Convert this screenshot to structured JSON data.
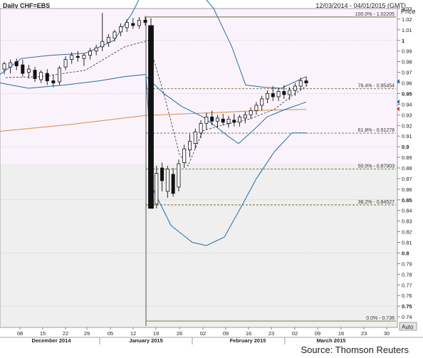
{
  "header": {
    "title": "Daily CHF=EBS",
    "date_range": "12/03/2014 - 04/01/2015 (GMT)"
  },
  "source": "Source: Thomson Reuters",
  "colors": {
    "candle": "#111111",
    "bollinger": "#1f6fa8",
    "moving_average": "#d98a4a",
    "fib_line": "#6b6b3a",
    "shade_upper": "#fbf3fb",
    "shade_lower": "#efefef",
    "price_marker_blue": "#1f6fa8",
    "price_marker_red": "#d04040"
  },
  "chart_data": {
    "type": "candlestick",
    "title": "Daily CHF=EBS",
    "ylabel": "Price",
    "ylim": [
      0.73,
      1.03
    ],
    "y_ticks": [
      "1.03",
      "1.02",
      "1.01",
      "1",
      "0.99",
      "0.98",
      "0.97",
      "0.96",
      "0.95",
      "0.94",
      "0.93",
      "0.92",
      "0.91",
      "0.9",
      "0.89",
      "0.88",
      "0.87",
      "0.86",
      "0.85",
      "0.84",
      "0.83",
      "0.82",
      "0.81",
      "0.8",
      "0.79",
      "0.78",
      "0.77",
      "0.76",
      "0.75",
      "0.74"
    ],
    "y_bold_ticks": [
      "1",
      "0.95",
      "0.9",
      "0.85",
      "0.8",
      "0.75"
    ],
    "y_axis_button": "Auto",
    "x_ticks": [
      "08",
      "15",
      "22",
      "29",
      "05",
      "12",
      "19",
      "26",
      "02",
      "09",
      "16",
      "23",
      "02",
      "09",
      "16",
      "23",
      "30"
    ],
    "months": [
      "December 2014",
      "January 2015",
      "February 2015",
      "March 2015"
    ],
    "fib_levels": [
      {
        "label": "100.0% - 1.02205",
        "value": 1.02205
      },
      {
        "label": "76.4% - 0.95454",
        "value": 0.95454
      },
      {
        "label": "61.8% - 0.91278",
        "value": 0.91278
      },
      {
        "label": "50.0% - 0.87903",
        "value": 0.87903
      },
      {
        "label": "38.2% - 0.84527",
        "value": 0.84527
      },
      {
        "label": "0.0% - 0.736",
        "value": 0.736
      }
    ],
    "candles": [
      {
        "o": 0.973,
        "h": 0.98,
        "l": 0.968,
        "c": 0.978
      },
      {
        "o": 0.975,
        "h": 0.982,
        "l": 0.969,
        "c": 0.979
      },
      {
        "o": 0.98,
        "h": 0.983,
        "l": 0.972,
        "c": 0.976
      },
      {
        "o": 0.977,
        "h": 0.982,
        "l": 0.966,
        "c": 0.969
      },
      {
        "o": 0.97,
        "h": 0.977,
        "l": 0.964,
        "c": 0.973
      },
      {
        "o": 0.972,
        "h": 0.975,
        "l": 0.961,
        "c": 0.964
      },
      {
        "o": 0.963,
        "h": 0.972,
        "l": 0.96,
        "c": 0.97
      },
      {
        "o": 0.969,
        "h": 0.973,
        "l": 0.958,
        "c": 0.962
      },
      {
        "o": 0.962,
        "h": 0.968,
        "l": 0.956,
        "c": 0.96
      },
      {
        "o": 0.961,
        "h": 0.976,
        "l": 0.958,
        "c": 0.974
      },
      {
        "o": 0.975,
        "h": 0.985,
        "l": 0.972,
        "c": 0.982
      },
      {
        "o": 0.982,
        "h": 0.989,
        "l": 0.978,
        "c": 0.986
      },
      {
        "o": 0.985,
        "h": 0.99,
        "l": 0.98,
        "c": 0.984
      },
      {
        "o": 0.983,
        "h": 0.988,
        "l": 0.976,
        "c": 0.986
      },
      {
        "o": 0.986,
        "h": 0.993,
        "l": 0.982,
        "c": 0.99
      },
      {
        "o": 0.99,
        "h": 0.996,
        "l": 0.986,
        "c": 0.993
      },
      {
        "o": 0.994,
        "h": 1.026,
        "l": 0.99,
        "c": 0.999
      },
      {
        "o": 0.998,
        "h": 1.006,
        "l": 0.994,
        "c": 1.003
      },
      {
        "o": 1.002,
        "h": 1.01,
        "l": 0.999,
        "c": 1.008
      },
      {
        "o": 1.008,
        "h": 1.016,
        "l": 1.004,
        "c": 1.013
      },
      {
        "o": 1.012,
        "h": 1.02,
        "l": 1.008,
        "c": 1.017
      },
      {
        "o": 1.016,
        "h": 1.021,
        "l": 1.011,
        "c": 1.014
      },
      {
        "o": 1.014,
        "h": 1.022,
        "l": 1.011,
        "c": 1.019
      },
      {
        "o": 1.019,
        "h": 1.023,
        "l": 1.014,
        "c": 1.017
      },
      {
        "o": 1.014,
        "h": 1.021,
        "l": 0.842,
        "c": 0.842
      },
      {
        "o": 0.846,
        "h": 0.882,
        "l": 0.842,
        "c": 0.875
      },
      {
        "o": 0.88,
        "h": 0.885,
        "l": 0.858,
        "c": 0.868
      },
      {
        "o": 0.858,
        "h": 0.882,
        "l": 0.852,
        "c": 0.879
      },
      {
        "o": 0.874,
        "h": 0.88,
        "l": 0.853,
        "c": 0.856
      },
      {
        "o": 0.862,
        "h": 0.888,
        "l": 0.858,
        "c": 0.884
      },
      {
        "o": 0.885,
        "h": 0.902,
        "l": 0.88,
        "c": 0.898
      },
      {
        "o": 0.897,
        "h": 0.912,
        "l": 0.89,
        "c": 0.905
      },
      {
        "o": 0.903,
        "h": 0.917,
        "l": 0.898,
        "c": 0.914
      },
      {
        "o": 0.913,
        "h": 0.925,
        "l": 0.908,
        "c": 0.922
      },
      {
        "o": 0.922,
        "h": 0.932,
        "l": 0.916,
        "c": 0.928
      },
      {
        "o": 0.928,
        "h": 0.934,
        "l": 0.92,
        "c": 0.924
      },
      {
        "o": 0.924,
        "h": 0.93,
        "l": 0.918,
        "c": 0.927
      },
      {
        "o": 0.926,
        "h": 0.931,
        "l": 0.92,
        "c": 0.923
      },
      {
        "o": 0.922,
        "h": 0.929,
        "l": 0.918,
        "c": 0.926
      },
      {
        "o": 0.925,
        "h": 0.931,
        "l": 0.919,
        "c": 0.923
      },
      {
        "o": 0.923,
        "h": 0.93,
        "l": 0.919,
        "c": 0.928
      },
      {
        "o": 0.927,
        "h": 0.933,
        "l": 0.922,
        "c": 0.93
      },
      {
        "o": 0.93,
        "h": 0.937,
        "l": 0.926,
        "c": 0.934
      },
      {
        "o": 0.934,
        "h": 0.942,
        "l": 0.93,
        "c": 0.939
      },
      {
        "o": 0.939,
        "h": 0.948,
        "l": 0.934,
        "c": 0.945
      },
      {
        "o": 0.945,
        "h": 0.953,
        "l": 0.941,
        "c": 0.95
      },
      {
        "o": 0.95,
        "h": 0.957,
        "l": 0.943,
        "c": 0.947
      },
      {
        "o": 0.947,
        "h": 0.955,
        "l": 0.943,
        "c": 0.952
      },
      {
        "o": 0.952,
        "h": 0.958,
        "l": 0.945,
        "c": 0.949
      },
      {
        "o": 0.949,
        "h": 0.956,
        "l": 0.944,
        "c": 0.953
      },
      {
        "o": 0.953,
        "h": 0.96,
        "l": 0.948,
        "c": 0.957
      },
      {
        "o": 0.957,
        "h": 0.965,
        "l": 0.953,
        "c": 0.962
      },
      {
        "o": 0.962,
        "h": 0.966,
        "l": 0.957,
        "c": 0.96
      }
    ]
  }
}
